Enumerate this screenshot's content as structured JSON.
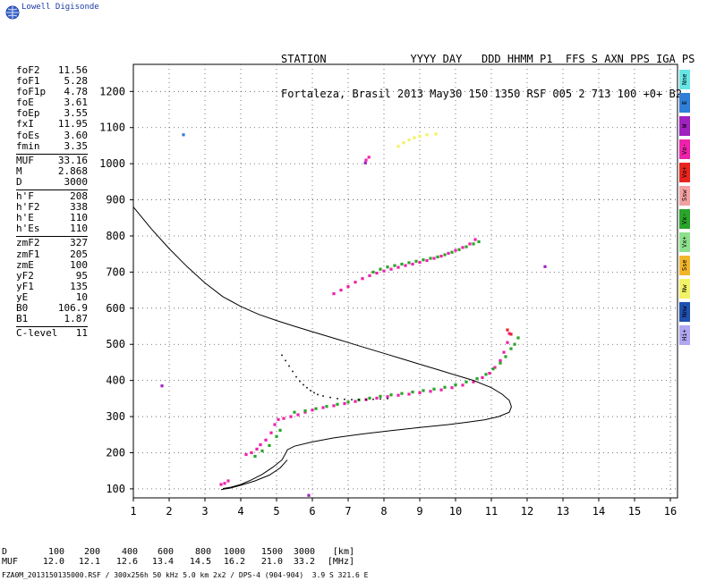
{
  "logo": {
    "text": "Lowell Digisonde"
  },
  "header": {
    "line1": "STATION             YYYY DAY   DDD HHMM P1  FFS S AXN PPS IGA PS",
    "line2": "Fortaleza, Brasil 2013 May30 150 1350 RSF 005 2 713 100 +0+ B2"
  },
  "params": [
    {
      "label": "foF2",
      "value": "11.56"
    },
    {
      "label": "foF1",
      "value": "5.28"
    },
    {
      "label": "foF1p",
      "value": "4.78"
    },
    {
      "label": "foE",
      "value": "3.61"
    },
    {
      "label": "foEp",
      "value": "3.55"
    },
    {
      "label": "fxI",
      "value": "11.95"
    },
    {
      "label": "foEs",
      "value": "3.60"
    },
    {
      "label": "fmin",
      "value": "3.35"
    },
    {
      "sep": true
    },
    {
      "label": "MUF",
      "value": "33.16"
    },
    {
      "label": "M",
      "value": "2.868"
    },
    {
      "label": "D",
      "value": "3000"
    },
    {
      "sep": true
    },
    {
      "label": "h'F",
      "value": "208"
    },
    {
      "label": "h'F2",
      "value": "338"
    },
    {
      "label": "h'E",
      "value": "110"
    },
    {
      "label": "h'Es",
      "value": "110"
    },
    {
      "sep": true
    },
    {
      "label": "zmF2",
      "value": "327"
    },
    {
      "label": "zmF1",
      "value": "205"
    },
    {
      "label": "zmE",
      "value": "100"
    },
    {
      "label": "yF2",
      "value": "95"
    },
    {
      "label": "yF1",
      "value": "135"
    },
    {
      "label": "yE",
      "value": "10"
    },
    {
      "label": "B0",
      "value": "106.9"
    },
    {
      "label": "B1",
      "value": "1.87"
    },
    {
      "sep": true
    },
    {
      "label": "C-level",
      "value": "11"
    }
  ],
  "legend": [
    {
      "label": "Nne",
      "color": "#66e6e6"
    },
    {
      "label": "E",
      "color": "#2f7fd9"
    },
    {
      "label": "W",
      "color": "#a020c0"
    },
    {
      "label": "Vo-",
      "color": "#ee22aa"
    },
    {
      "label": "Vo+",
      "color": "#e8261e"
    },
    {
      "label": "Ssw",
      "color": "#f2a0a0"
    },
    {
      "label": "Vx-",
      "color": "#2aa52a"
    },
    {
      "label": "Vx+",
      "color": "#8ee08e"
    },
    {
      "label": "Sse",
      "color": "#f2b62a"
    },
    {
      "label": "Nw",
      "color": "#f2f266"
    },
    {
      "label": "Nnw",
      "color": "#2050b0"
    },
    {
      "label": "Hi+",
      "color": "#b0a6f2"
    }
  ],
  "table": {
    "d_label": "D",
    "d_values": [
      "100",
      "200",
      "400",
      "600",
      "800",
      "1000",
      "1500",
      "3000",
      "[km]"
    ],
    "muf_label": "MUF",
    "muf_values": [
      "12.0",
      "12.1",
      "12.6",
      "13.4",
      "14.5",
      "16.2",
      "21.0",
      "33.2",
      "[MHz]"
    ]
  },
  "footer": {
    "text": "FZA0M_2013150135000.RSF / 300x256h 50 kHz 5.0 km 2x2 / DPS-4 (904-904)  3.9 S 321.6 E"
  },
  "chart_data": {
    "type": "scatter",
    "title": "",
    "xlabel": "",
    "ylabel": "",
    "xlim": [
      1,
      16.2
    ],
    "ylim": [
      75,
      1275
    ],
    "xticks": [
      1,
      2,
      3,
      4,
      5,
      6,
      7,
      8,
      9,
      10,
      11,
      12,
      13,
      14,
      15,
      16
    ],
    "yticks": [
      100,
      200,
      300,
      400,
      500,
      600,
      700,
      800,
      900,
      1000,
      1100,
      1200
    ],
    "grid": true,
    "series": [
      {
        "name": "Vo-",
        "color": "#ee22aa",
        "style": "dots",
        "points": [
          [
            3.45,
            112
          ],
          [
            3.55,
            115
          ],
          [
            3.65,
            122
          ],
          [
            4.15,
            195
          ],
          [
            4.3,
            200
          ],
          [
            4.45,
            210
          ],
          [
            4.55,
            222
          ],
          [
            4.7,
            235
          ],
          [
            4.85,
            255
          ],
          [
            4.95,
            278
          ],
          [
            5.05,
            292
          ],
          [
            5.2,
            295
          ],
          [
            5.4,
            300
          ],
          [
            5.6,
            305
          ],
          [
            5.8,
            312
          ],
          [
            6.0,
            318
          ],
          [
            6.3,
            325
          ],
          [
            6.6,
            330
          ],
          [
            6.9,
            336
          ],
          [
            7.2,
            342
          ],
          [
            7.5,
            347
          ],
          [
            7.8,
            351
          ],
          [
            8.1,
            355
          ],
          [
            8.4,
            359
          ],
          [
            8.7,
            362
          ],
          [
            9.0,
            366
          ],
          [
            9.3,
            370
          ],
          [
            9.6,
            374
          ],
          [
            9.9,
            380
          ],
          [
            10.2,
            387
          ],
          [
            10.5,
            396
          ],
          [
            10.75,
            408
          ],
          [
            10.95,
            420
          ],
          [
            11.1,
            436
          ],
          [
            11.25,
            455
          ],
          [
            11.35,
            478
          ],
          [
            11.45,
            505
          ],
          [
            11.5,
            530
          ],
          [
            6.6,
            640
          ],
          [
            6.8,
            650
          ],
          [
            7.0,
            660
          ],
          [
            7.2,
            672
          ],
          [
            7.4,
            682
          ],
          [
            7.6,
            690
          ],
          [
            7.8,
            697
          ],
          [
            8.0,
            703
          ],
          [
            8.2,
            708
          ],
          [
            8.4,
            713
          ],
          [
            8.6,
            718
          ],
          [
            8.8,
            722
          ],
          [
            9.0,
            727
          ],
          [
            9.2,
            732
          ],
          [
            9.4,
            738
          ],
          [
            9.6,
            744
          ],
          [
            9.8,
            752
          ],
          [
            10.0,
            760
          ],
          [
            10.2,
            768
          ],
          [
            10.4,
            778
          ],
          [
            10.55,
            790
          ],
          [
            7.5,
            1010
          ],
          [
            7.58,
            1018
          ]
        ]
      },
      {
        "name": "Vx-",
        "color": "#2aa52a",
        "style": "dots",
        "points": [
          [
            4.4,
            190
          ],
          [
            4.6,
            205
          ],
          [
            4.8,
            220
          ],
          [
            5.0,
            245
          ],
          [
            5.1,
            262
          ],
          [
            5.5,
            312
          ],
          [
            5.8,
            316
          ],
          [
            6.1,
            322
          ],
          [
            6.4,
            328
          ],
          [
            6.7,
            334
          ],
          [
            7.0,
            340
          ],
          [
            7.3,
            346
          ],
          [
            7.6,
            351
          ],
          [
            7.9,
            356
          ],
          [
            8.2,
            360
          ],
          [
            8.5,
            364
          ],
          [
            8.8,
            368
          ],
          [
            9.1,
            372
          ],
          [
            9.4,
            376
          ],
          [
            9.7,
            381
          ],
          [
            10.0,
            388
          ],
          [
            10.3,
            396
          ],
          [
            10.6,
            405
          ],
          [
            10.85,
            417
          ],
          [
            11.05,
            432
          ],
          [
            11.25,
            448
          ],
          [
            11.4,
            466
          ],
          [
            11.55,
            488
          ],
          [
            11.65,
            500
          ],
          [
            11.75,
            518
          ],
          [
            7.7,
            700
          ],
          [
            7.9,
            708
          ],
          [
            8.1,
            714
          ],
          [
            8.3,
            718
          ],
          [
            8.5,
            722
          ],
          [
            8.7,
            726
          ],
          [
            8.9,
            730
          ],
          [
            9.1,
            734
          ],
          [
            9.3,
            738
          ],
          [
            9.5,
            742
          ],
          [
            9.7,
            748
          ],
          [
            9.9,
            755
          ],
          [
            10.1,
            762
          ],
          [
            10.3,
            770
          ],
          [
            10.5,
            778
          ],
          [
            10.65,
            784
          ]
        ]
      },
      {
        "name": "Nw",
        "color": "#f2f266",
        "style": "dots",
        "points": [
          [
            8.4,
            1048
          ],
          [
            8.55,
            1058
          ],
          [
            8.7,
            1066
          ],
          [
            8.85,
            1072
          ],
          [
            9.0,
            1076
          ],
          [
            9.2,
            1080
          ],
          [
            9.45,
            1082
          ]
        ]
      },
      {
        "name": "Vo+",
        "color": "#e8261e",
        "style": "dots",
        "points": [
          [
            11.45,
            540
          ],
          [
            11.55,
            528
          ]
        ]
      },
      {
        "name": "E",
        "color": "#2f7fd9",
        "style": "dots",
        "points": [
          [
            2.4,
            1080
          ]
        ]
      },
      {
        "name": "W",
        "color": "#a020c0",
        "style": "dots",
        "points": [
          [
            7.48,
            1002
          ],
          [
            12.5,
            715
          ],
          [
            1.8,
            385
          ],
          [
            5.9,
            82
          ]
        ]
      },
      {
        "name": "profile",
        "color": "#000000",
        "style": "line",
        "points": [
          [
            1.0,
            880
          ],
          [
            1.5,
            820
          ],
          [
            2.0,
            765
          ],
          [
            2.5,
            715
          ],
          [
            3.0,
            670
          ],
          [
            3.5,
            632
          ],
          [
            4.0,
            605
          ],
          [
            4.5,
            583
          ],
          [
            5.0,
            566
          ],
          [
            5.5,
            550
          ],
          [
            6.0,
            535
          ],
          [
            6.5,
            520
          ],
          [
            7.0,
            505
          ],
          [
            7.5,
            490
          ],
          [
            8.0,
            475
          ],
          [
            8.5,
            460
          ],
          [
            9.0,
            445
          ],
          [
            9.5,
            430
          ],
          [
            10.0,
            415
          ],
          [
            10.5,
            400
          ],
          [
            11.0,
            380
          ],
          [
            11.3,
            362
          ],
          [
            11.5,
            345
          ],
          [
            11.56,
            327
          ],
          [
            11.5,
            312
          ],
          [
            11.2,
            300
          ],
          [
            10.8,
            291
          ],
          [
            10.3,
            284
          ],
          [
            9.8,
            278
          ],
          [
            9.0,
            270
          ],
          [
            8.2,
            261
          ],
          [
            7.4,
            252
          ],
          [
            6.6,
            241
          ],
          [
            6.0,
            230
          ],
          [
            5.5,
            218
          ],
          [
            5.3,
            208
          ],
          [
            5.28,
            203
          ],
          [
            5.15,
            180
          ],
          [
            4.9,
            160
          ],
          [
            4.6,
            140
          ],
          [
            4.3,
            125
          ],
          [
            4.0,
            112
          ],
          [
            3.7,
            104
          ],
          [
            3.5,
            101
          ]
        ]
      },
      {
        "name": "profile-lower",
        "color": "#000000",
        "style": "line",
        "points": [
          [
            3.45,
            98
          ],
          [
            3.7,
            102
          ],
          [
            4.0,
            110
          ],
          [
            4.4,
            122
          ],
          [
            4.8,
            138
          ],
          [
            5.1,
            158
          ],
          [
            5.3,
            180
          ]
        ]
      },
      {
        "name": "trace-dotted",
        "color": "#000000",
        "style": "dots",
        "points": [
          [
            5.15,
            470
          ],
          [
            5.25,
            455
          ],
          [
            5.35,
            440
          ],
          [
            5.45,
            425
          ],
          [
            5.55,
            410
          ],
          [
            5.65,
            398
          ],
          [
            5.75,
            388
          ],
          [
            5.85,
            380
          ],
          [
            5.95,
            372
          ],
          [
            6.05,
            366
          ],
          [
            6.15,
            361
          ],
          [
            6.3,
            357
          ],
          [
            6.5,
            353
          ],
          [
            6.7,
            350
          ],
          [
            6.9,
            348
          ],
          [
            7.1,
            347
          ],
          [
            7.3,
            347
          ],
          [
            7.5,
            347
          ],
          [
            7.7,
            348
          ],
          [
            7.9,
            349
          ],
          [
            8.1,
            350
          ]
        ]
      }
    ]
  }
}
